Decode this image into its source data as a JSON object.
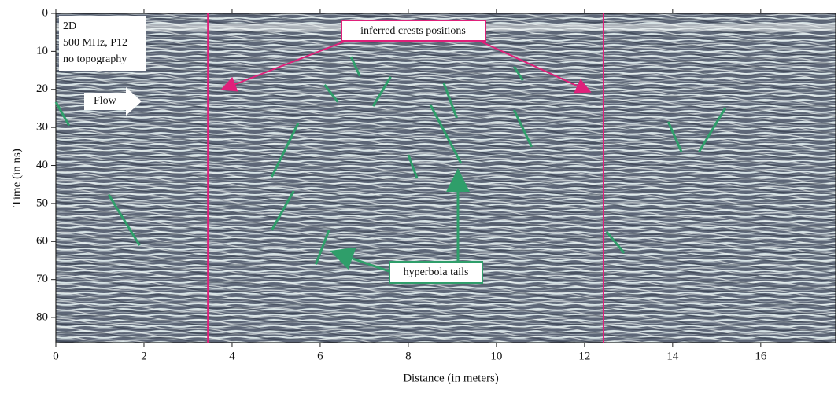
{
  "chart_data": {
    "type": "radargram",
    "x_label": "Distance (in meters)",
    "y_label": "Time (in ns)",
    "xlim": [
      0,
      17.7
    ],
    "ylim": [
      0,
      86.6
    ],
    "y_inverted": true,
    "xticks": [
      0,
      2,
      4,
      6,
      8,
      10,
      12,
      14,
      16
    ],
    "yticks": [
      0,
      10,
      20,
      30,
      40,
      50,
      60,
      70,
      80
    ],
    "info_lines": [
      "2D",
      "500 MHz, P12",
      "no topography"
    ],
    "flow_label": "Flow",
    "crest_label": "inferred crests positions",
    "crest_color": "#e0207a",
    "crest_positions": [
      3.45,
      12.43
    ],
    "tail_label": "hyperbola tails",
    "tail_color": "#2f9e6a",
    "tails": [
      {
        "x": [
          0,
          0.3
        ],
        "y": [
          23.3,
          29.5
        ]
      },
      {
        "x": [
          1.2,
          1.9
        ],
        "y": [
          47.7,
          61
        ]
      },
      {
        "x": [
          5.5,
          4.9
        ],
        "y": [
          28.9,
          43
        ]
      },
      {
        "x": [
          5.4,
          4.9
        ],
        "y": [
          46.7,
          57
        ]
      },
      {
        "x": [
          6.2,
          5.9
        ],
        "y": [
          57,
          66
        ]
      },
      {
        "x": [
          6.7,
          6.9
        ],
        "y": [
          11.4,
          16.5
        ]
      },
      {
        "x": [
          6.1,
          6.4
        ],
        "y": [
          18.8,
          23.3
        ]
      },
      {
        "x": [
          7.6,
          7.2
        ],
        "y": [
          16.7,
          24.4
        ]
      },
      {
        "x": [
          8.0,
          8.2
        ],
        "y": [
          37.2,
          43.4
        ]
      },
      {
        "x": [
          8.5,
          9.2
        ],
        "y": [
          24,
          39.5
        ]
      },
      {
        "x": [
          8.8,
          9.1
        ],
        "y": [
          18.2,
          27.5
        ]
      },
      {
        "x": [
          10.4,
          10.6
        ],
        "y": [
          14,
          17.6
        ]
      },
      {
        "x": [
          10.4,
          10.8
        ],
        "y": [
          25.4,
          35.1
        ]
      },
      {
        "x": [
          12.5,
          12.9
        ],
        "y": [
          57.4,
          63
        ]
      },
      {
        "x": [
          13.9,
          14.2
        ],
        "y": [
          28.5,
          36.4
        ]
      },
      {
        "x": [
          14.6,
          15.2
        ],
        "y": [
          36.4,
          24.8
        ]
      }
    ]
  }
}
